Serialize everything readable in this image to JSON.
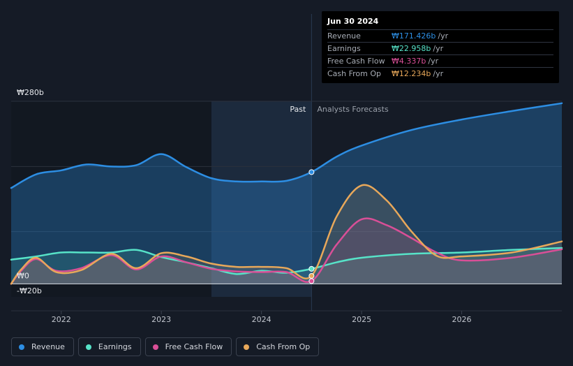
{
  "chart_data": {
    "type": "line",
    "title": "",
    "y_unit_prefix": "₩",
    "ylim": [
      -20,
      280
    ],
    "y_labels": [
      "₩280b",
      "₩0",
      "-₩20b"
    ],
    "xlim": [
      2021.5,
      2027.0
    ],
    "x_ticks": [
      2022,
      2023,
      2024,
      2025,
      2026
    ],
    "x_tick_labels": [
      "2022",
      "2023",
      "2024",
      "2025",
      "2026"
    ],
    "past_label": "Past",
    "forecast_label": "Analysts Forecasts",
    "forecast_start": 2024.5,
    "shade_start": 2023.5,
    "series": [
      {
        "name": "Revenue",
        "color": "#2d8ee3",
        "fill": true,
        "x": [
          2021.5,
          2021.75,
          2022.0,
          2022.25,
          2022.5,
          2022.75,
          2023.0,
          2023.25,
          2023.5,
          2023.75,
          2024.0,
          2024.25,
          2024.5,
          2024.75,
          2025.0,
          2025.5,
          2026.0,
          2026.5,
          2027.0
        ],
        "y": [
          147,
          168,
          174,
          183,
          180,
          182,
          199,
          179,
          162,
          157,
          157,
          158,
          171.4,
          195,
          212,
          236,
          252,
          265,
          277
        ]
      },
      {
        "name": "Earnings",
        "color": "#57e3c8",
        "fill": false,
        "x": [
          2021.5,
          2021.75,
          2022.0,
          2022.25,
          2022.5,
          2022.75,
          2023.0,
          2023.25,
          2023.5,
          2023.75,
          2024.0,
          2024.25,
          2024.5,
          2024.75,
          2025.0,
          2025.5,
          2026.0,
          2026.5,
          2027.0
        ],
        "y": [
          37,
          42,
          48,
          48,
          48,
          52,
          41,
          33,
          24,
          15,
          20,
          17,
          23,
          33,
          40,
          46,
          48,
          52,
          55
        ]
      },
      {
        "name": "Free Cash Flow",
        "color": "#d94f97",
        "fill": false,
        "x": [
          2021.5,
          2021.6,
          2021.75,
          2021.95,
          2022.2,
          2022.5,
          2022.75,
          2023.0,
          2023.25,
          2023.5,
          2023.75,
          2024.0,
          2024.25,
          2024.5,
          2024.75,
          2025.0,
          2025.25,
          2025.5,
          2025.75,
          2026.0,
          2026.5,
          2027.0
        ],
        "y": [
          0,
          20,
          38,
          20,
          24,
          44,
          22,
          42,
          33,
          23,
          19,
          18,
          18,
          4.3,
          60,
          99,
          90,
          70,
          48,
          36,
          40,
          53
        ]
      },
      {
        "name": "Cash From Op",
        "color": "#e8a85a",
        "fill": false,
        "x": [
          2021.5,
          2021.6,
          2021.75,
          2021.95,
          2022.2,
          2022.5,
          2022.75,
          2023.0,
          2023.25,
          2023.5,
          2023.75,
          2024.0,
          2024.25,
          2024.5,
          2024.75,
          2025.0,
          2025.25,
          2025.5,
          2025.75,
          2026.0,
          2026.5,
          2027.0
        ],
        "y": [
          0,
          22,
          40,
          18,
          21,
          46,
          24,
          47,
          42,
          31,
          26,
          26,
          24,
          12.2,
          103,
          151,
          128,
          80,
          43,
          42,
          48,
          65
        ]
      }
    ]
  },
  "tooltip": {
    "date": "Jun 30 2024",
    "rows": [
      {
        "label": "Revenue",
        "value": "₩171.426b",
        "unit": "/yr",
        "color": "#2d8ee3"
      },
      {
        "label": "Earnings",
        "value": "₩22.958b",
        "unit": "/yr",
        "color": "#57e3c8"
      },
      {
        "label": "Free Cash Flow",
        "value": "₩4.337b",
        "unit": "/yr",
        "color": "#d94f97"
      },
      {
        "label": "Cash From Op",
        "value": "₩12.234b",
        "unit": "/yr",
        "color": "#e8a85a"
      }
    ]
  },
  "legend": [
    {
      "label": "Revenue",
      "color": "#2d8ee3"
    },
    {
      "label": "Earnings",
      "color": "#57e3c8"
    },
    {
      "label": "Free Cash Flow",
      "color": "#d94f97"
    },
    {
      "label": "Cash From Op",
      "color": "#e8a85a"
    }
  ]
}
